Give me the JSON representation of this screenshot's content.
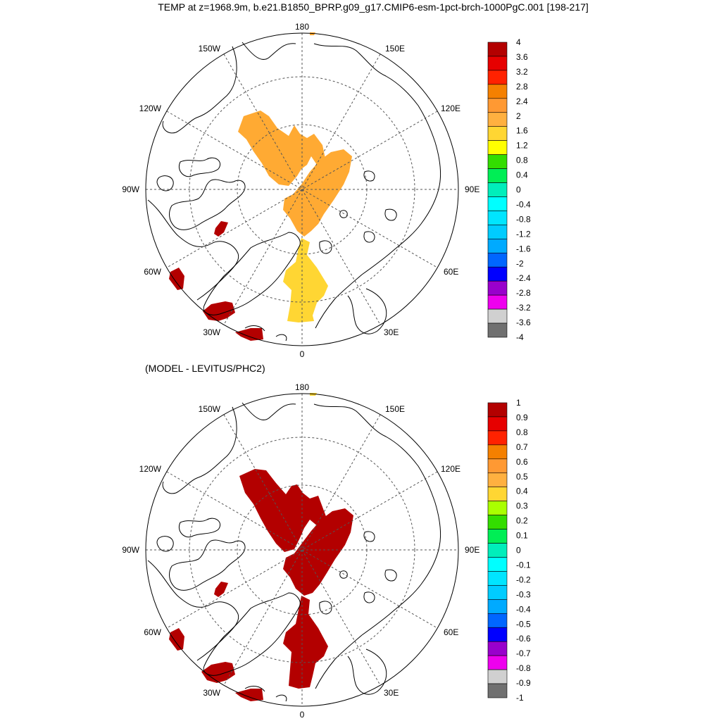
{
  "title": "TEMP at z=1968.9m, b.e21.B1850_BPRP.g09_g17.CMIP6-esm-1pct-brch-1000PgC.001 [198-217]",
  "subtitle": "(MODEL - LEVITUS/PHC2)",
  "colors": {
    "orange": "#ffaa33",
    "yellow": "#ffd633",
    "darkred": "#b30000",
    "coast": "#000000",
    "grid": "#555555"
  },
  "longitude_labels": [
    "180",
    "150E",
    "120E",
    "90E",
    "60E",
    "30E",
    "0",
    "30W",
    "60W",
    "90W",
    "120W",
    "150W"
  ],
  "maps": [
    {
      "name": "temperature",
      "colorbar": {
        "ticks": [
          "4",
          "3.6",
          "3.2",
          "2.8",
          "2.4",
          "2",
          "1.6",
          "1.2",
          "0.8",
          "0.4",
          "0",
          "-0.4",
          "-0.8",
          "-1.2",
          "-1.6",
          "-2",
          "-2.4",
          "-2.8",
          "-3.2",
          "-3.6",
          "-4"
        ],
        "colors": [
          "#b30000",
          "#e60000",
          "#ff2200",
          "#f58000",
          "#ff9933",
          "#ffb040",
          "#ffd633",
          "#ffff00",
          "#33dd00",
          "#00ee55",
          "#00eebb",
          "#00ffff",
          "#00e5ff",
          "#00ccff",
          "#00aaff",
          "#0066ff",
          "#0000ff",
          "#9900cc",
          "#ee00ee",
          "#d0d0d0",
          "#707070"
        ]
      }
    },
    {
      "name": "difference",
      "colorbar": {
        "ticks": [
          "1",
          "0.9",
          "0.8",
          "0.7",
          "0.6",
          "0.5",
          "0.4",
          "0.3",
          "0.2",
          "0.1",
          "0",
          "-0.1",
          "-0.2",
          "-0.3",
          "-0.4",
          "-0.5",
          "-0.6",
          "-0.7",
          "-0.8",
          "-0.9",
          "-1"
        ],
        "colors": [
          "#b30000",
          "#e60000",
          "#ff2200",
          "#f58000",
          "#ff9933",
          "#ffb040",
          "#ffd633",
          "#aaff00",
          "#33dd00",
          "#00ee55",
          "#00eebb",
          "#00ffff",
          "#00e5ff",
          "#00ccff",
          "#00aaff",
          "#0066ff",
          "#0000ff",
          "#9900cc",
          "#ee00ee",
          "#d0d0d0",
          "#707070"
        ]
      }
    }
  ]
}
